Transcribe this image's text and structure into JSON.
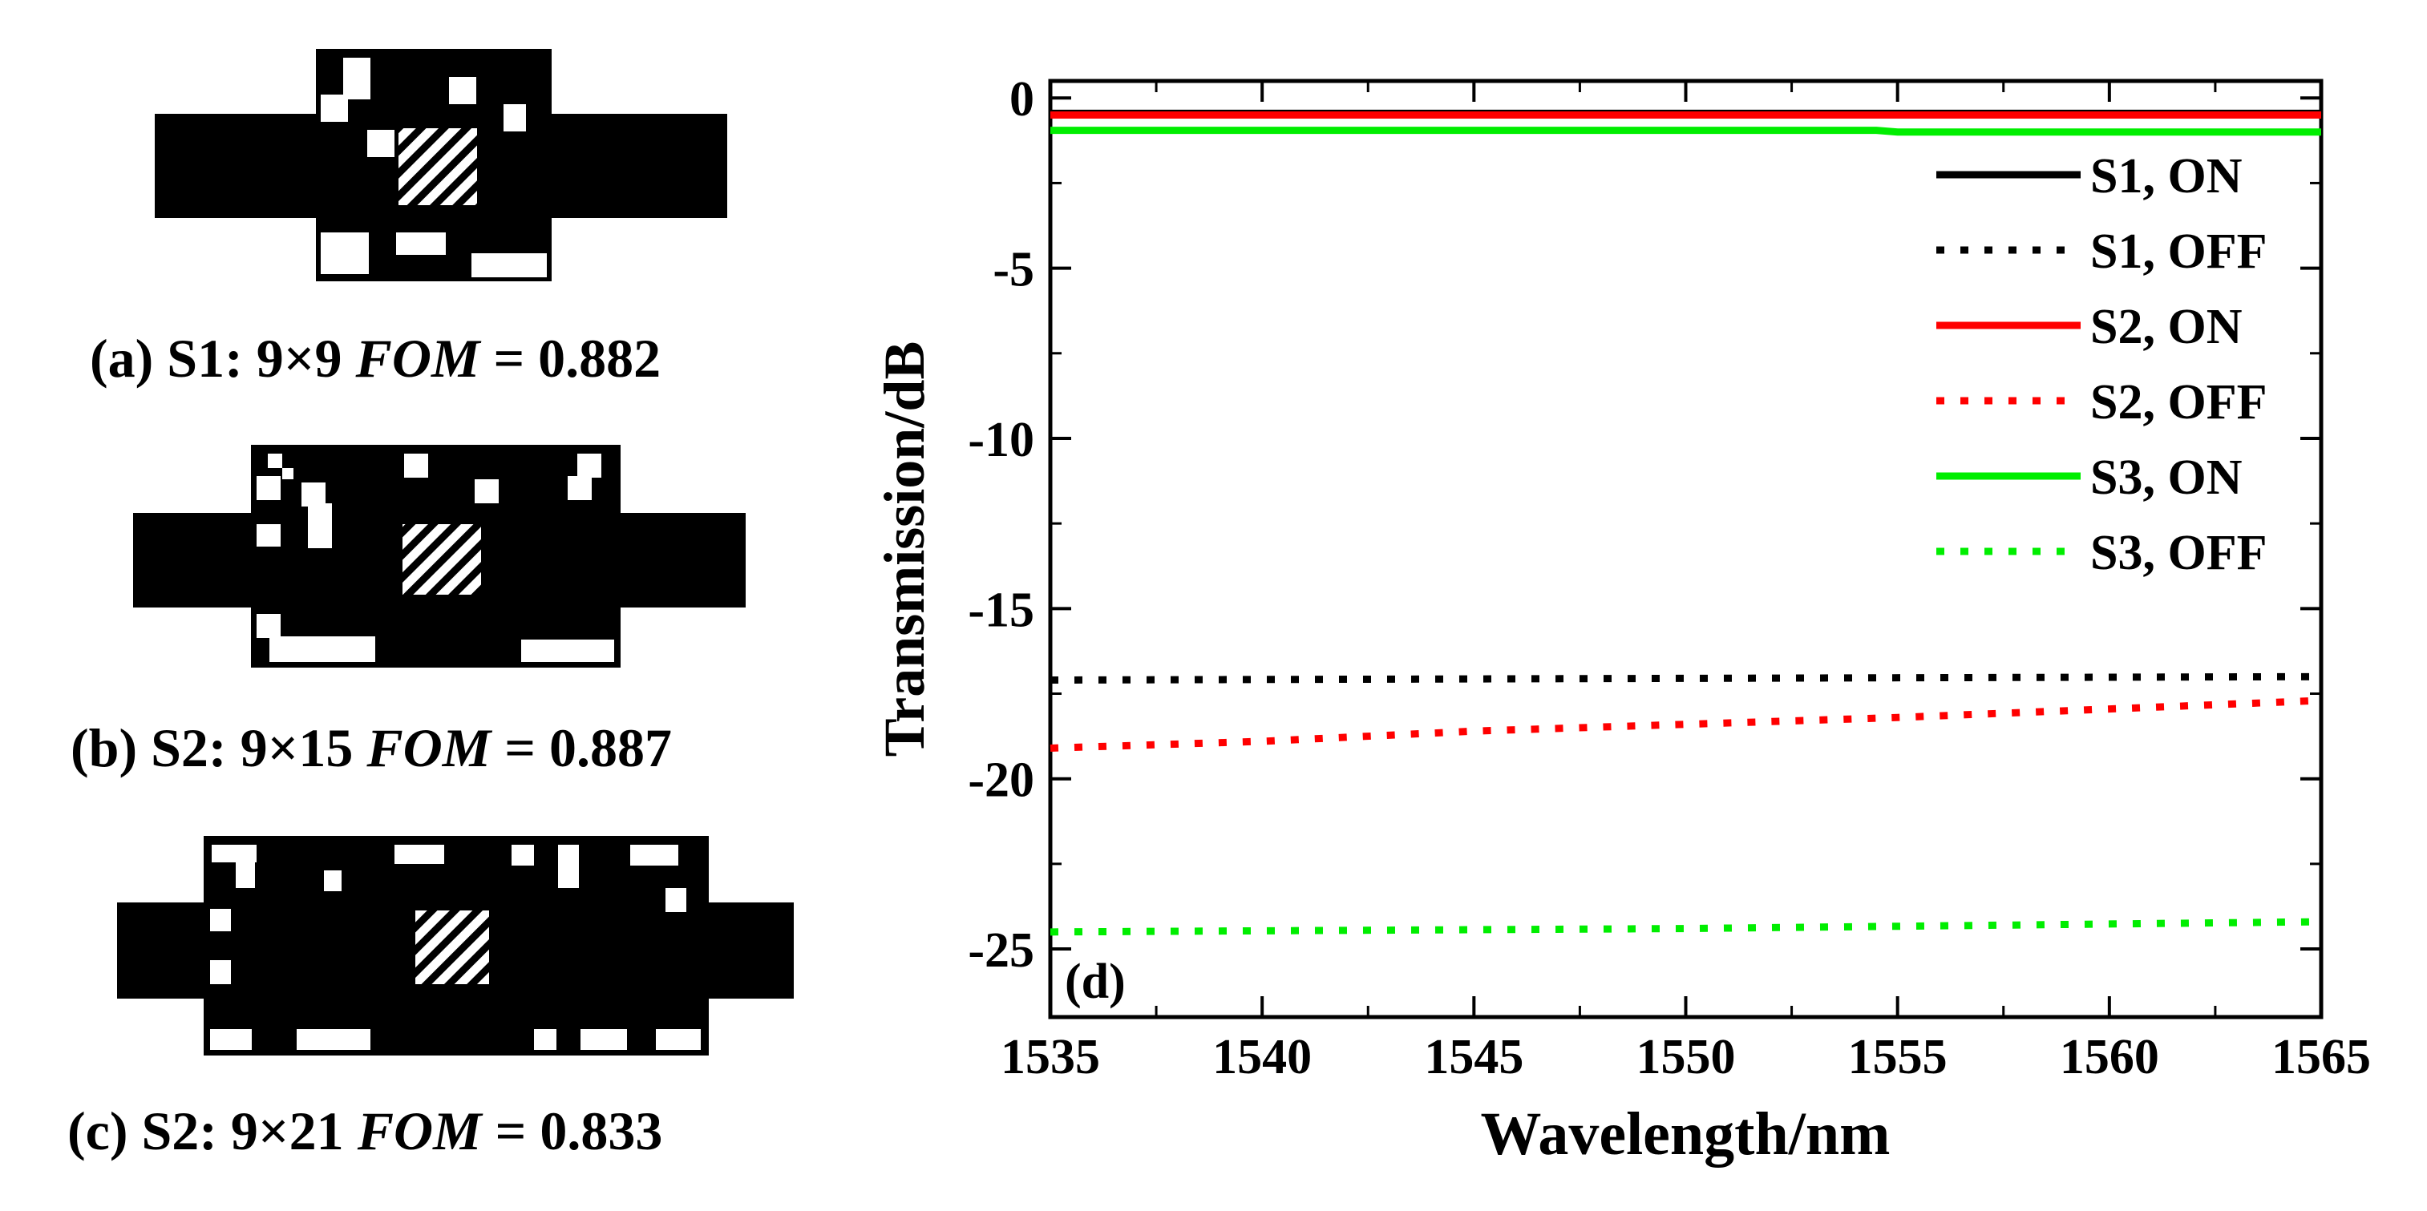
{
  "panels": [
    {
      "id": "a",
      "caption_prefix": "(a) S1: 9×9 ",
      "caption_fom_label": "FOM",
      "caption_value": " = 0.882"
    },
    {
      "id": "b",
      "caption_prefix": "(b) S2: 9×15 ",
      "caption_fom_label": "FOM",
      "caption_value": " = 0.887"
    },
    {
      "id": "c",
      "caption_prefix": "(c) S2: 9×21 ",
      "caption_fom_label": "FOM",
      "caption_value": " = 0.833"
    }
  ],
  "chart_data": {
    "type": "line",
    "panel_label": "(d)",
    "xlabel": "Wavelength/nm",
    "ylabel": "Transmission/dB",
    "xlim": [
      1535,
      1565
    ],
    "ylim": [
      -27,
      0.5
    ],
    "xticks": [
      1535,
      1540,
      1545,
      1550,
      1555,
      1560,
      1565
    ],
    "yticks": [
      0,
      -5,
      -10,
      -15,
      -20,
      -25
    ],
    "legend_position": "top-right",
    "series": [
      {
        "name": "S1, ON",
        "color": "#000000",
        "style": "solid",
        "x": [
          1535,
          1565
        ],
        "y": [
          -0.45,
          -0.45
        ]
      },
      {
        "name": "S1, OFF",
        "color": "#000000",
        "style": "dotted",
        "x": [
          1535,
          1550,
          1565
        ],
        "y": [
          -17.1,
          -17.05,
          -17.0
        ]
      },
      {
        "name": "S2, ON",
        "color": "#ff0000",
        "style": "solid",
        "x": [
          1535,
          1565
        ],
        "y": [
          -0.5,
          -0.5
        ]
      },
      {
        "name": "S2, OFF",
        "color": "#ff0000",
        "style": "dotted",
        "x": [
          1535,
          1540,
          1545,
          1550,
          1555,
          1560,
          1565
        ],
        "y": [
          -19.1,
          -18.9,
          -18.6,
          -18.4,
          -18.2,
          -17.95,
          -17.7
        ]
      },
      {
        "name": "S3, ON",
        "color": "#00ee00",
        "style": "solid",
        "x": [
          1535,
          1554.5,
          1555,
          1565
        ],
        "y": [
          -0.95,
          -0.95,
          -1.0,
          -1.0
        ]
      },
      {
        "name": "S3, OFF",
        "color": "#00ee00",
        "style": "dotted",
        "x": [
          1535,
          1550,
          1565
        ],
        "y": [
          -24.5,
          -24.4,
          -24.2
        ]
      }
    ]
  }
}
